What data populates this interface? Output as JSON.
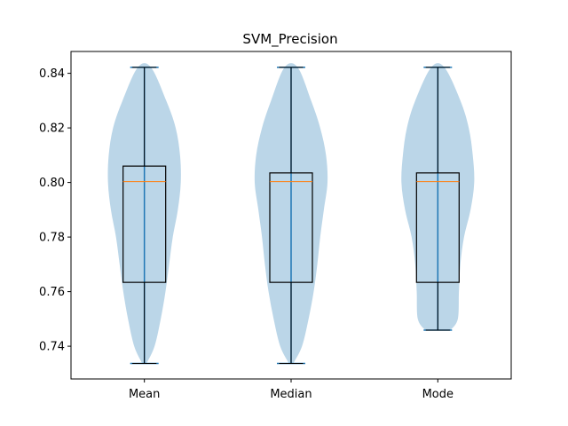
{
  "chart_data": {
    "type": "violin+box",
    "title": "SVM_Precision",
    "xlabel": "",
    "ylabel": "",
    "categories": [
      "Mean",
      "Median",
      "Mode"
    ],
    "ylim": [
      0.728,
      0.848
    ],
    "yticks": [
      0.74,
      0.76,
      0.78,
      0.8,
      0.82,
      0.84
    ],
    "ytick_labels": [
      "0.74",
      "0.76",
      "0.78",
      "0.80",
      "0.82",
      "0.84"
    ],
    "grid": false,
    "colors": {
      "violin_fill": "#1f77b4",
      "violin_line": "#1f77b4",
      "box": "#000000",
      "median": "#ff7f0e"
    },
    "series": [
      {
        "name": "Mean",
        "min": 0.7337,
        "q1": 0.7634,
        "median": 0.8003,
        "q3": 0.806,
        "max": 0.8422,
        "density": [
          [
            0.7337,
            0.06
          ],
          [
            0.74,
            0.28
          ],
          [
            0.75,
            0.45
          ],
          [
            0.76,
            0.58
          ],
          [
            0.77,
            0.68
          ],
          [
            0.78,
            0.78
          ],
          [
            0.79,
            0.92
          ],
          [
            0.8,
            1.0
          ],
          [
            0.81,
            0.98
          ],
          [
            0.82,
            0.86
          ],
          [
            0.83,
            0.6
          ],
          [
            0.8422,
            0.18
          ]
        ]
      },
      {
        "name": "Median",
        "min": 0.7337,
        "q1": 0.7634,
        "median": 0.8003,
        "q3": 0.8035,
        "max": 0.8422,
        "density": [
          [
            0.7337,
            0.06
          ],
          [
            0.74,
            0.3
          ],
          [
            0.75,
            0.48
          ],
          [
            0.76,
            0.62
          ],
          [
            0.77,
            0.72
          ],
          [
            0.78,
            0.8
          ],
          [
            0.79,
            0.9
          ],
          [
            0.8,
            1.0
          ],
          [
            0.81,
            0.96
          ],
          [
            0.82,
            0.8
          ],
          [
            0.83,
            0.55
          ],
          [
            0.8422,
            0.18
          ]
        ]
      },
      {
        "name": "Mode",
        "min": 0.7459,
        "q1": 0.7634,
        "median": 0.8003,
        "q3": 0.8035,
        "max": 0.8422,
        "density": [
          [
            0.7459,
            0.35
          ],
          [
            0.75,
            0.55
          ],
          [
            0.76,
            0.58
          ],
          [
            0.77,
            0.62
          ],
          [
            0.78,
            0.72
          ],
          [
            0.79,
            0.9
          ],
          [
            0.8,
            1.0
          ],
          [
            0.81,
            0.96
          ],
          [
            0.82,
            0.85
          ],
          [
            0.83,
            0.62
          ],
          [
            0.8422,
            0.18
          ]
        ]
      }
    ]
  }
}
